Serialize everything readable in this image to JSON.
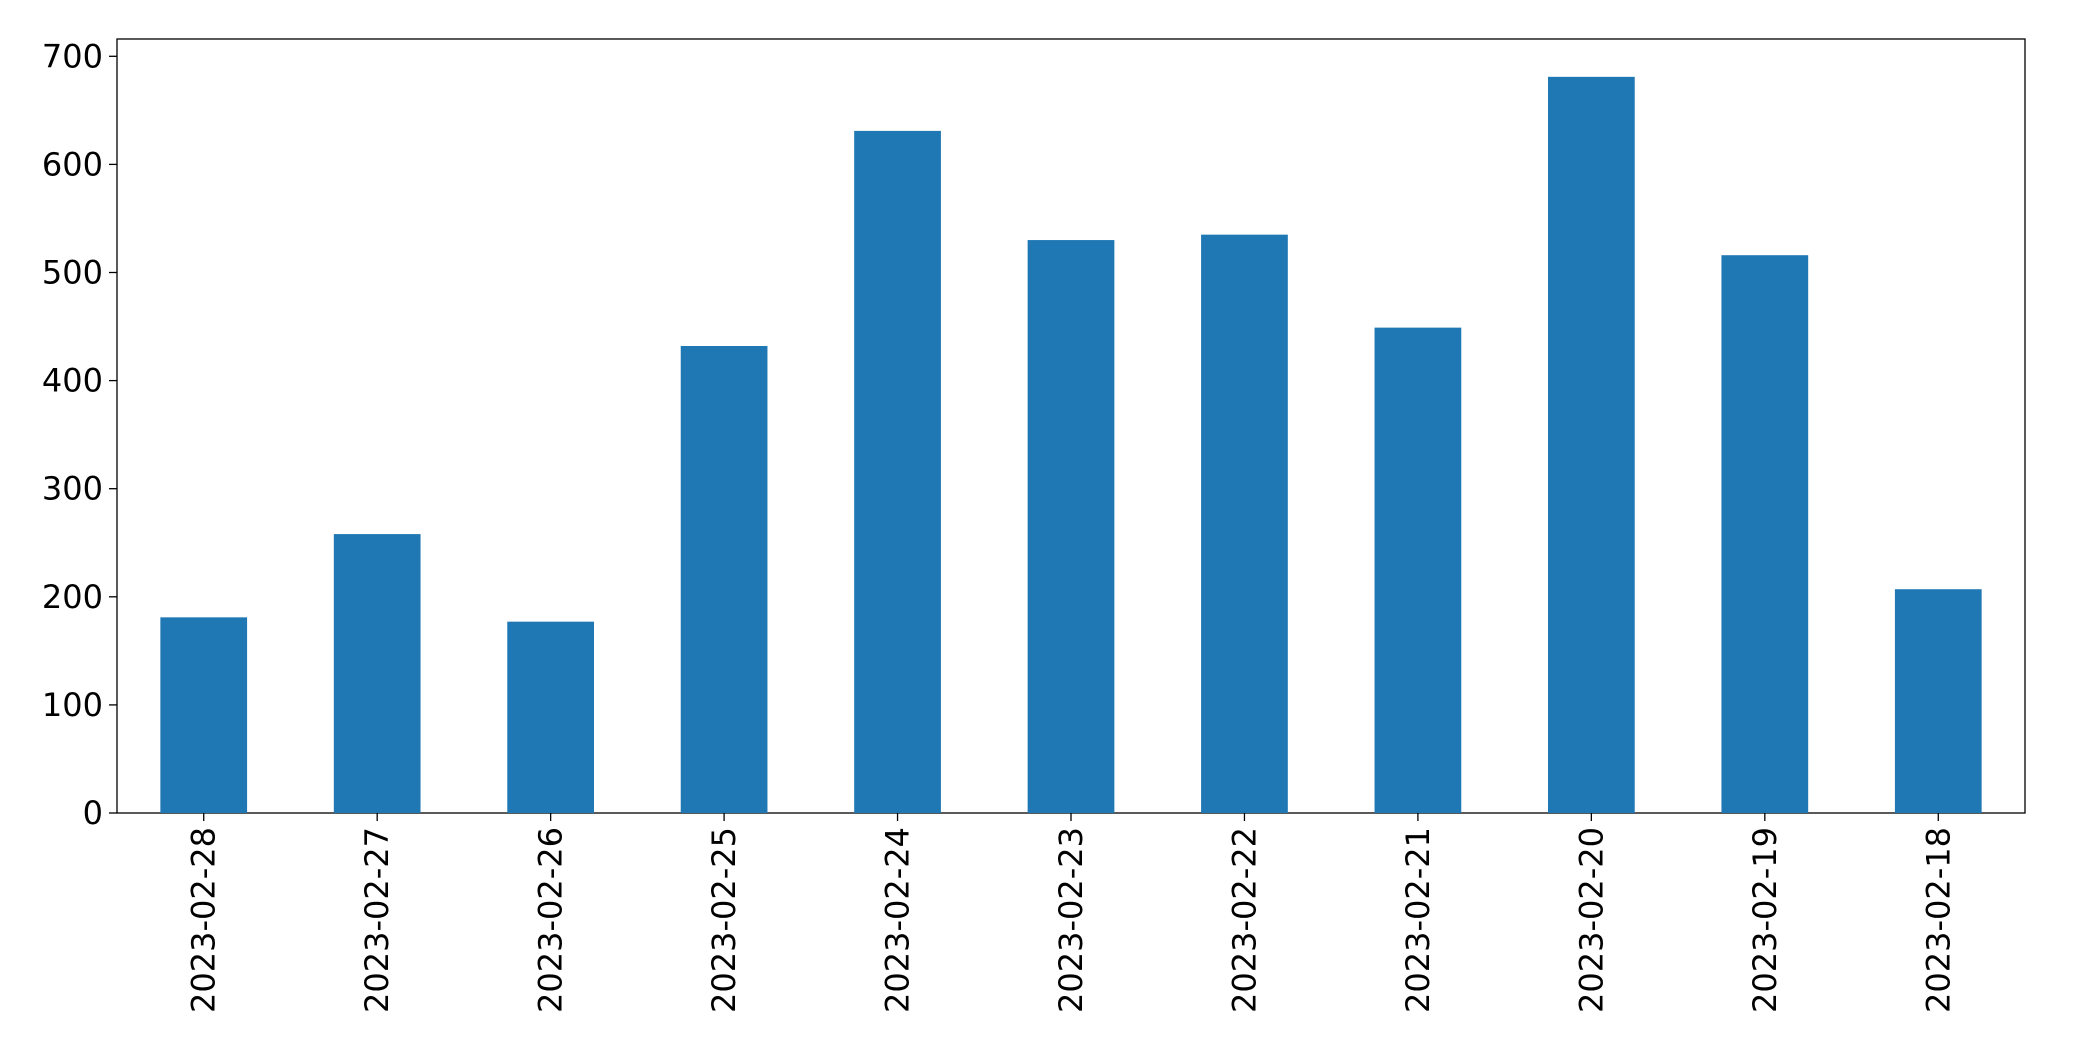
{
  "chart_data": {
    "type": "bar",
    "categories": [
      "2023-02-28",
      "2023-02-27",
      "2023-02-26",
      "2023-02-25",
      "2023-02-24",
      "2023-02-23",
      "2023-02-22",
      "2023-02-21",
      "2023-02-20",
      "2023-02-19",
      "2023-02-18"
    ],
    "values": [
      181,
      258,
      177,
      432,
      631,
      530,
      535,
      449,
      681,
      516,
      207
    ],
    "color": "#1f77b4",
    "ylim": [
      0,
      716
    ],
    "yticks": [
      0,
      100,
      200,
      300,
      400,
      500,
      600,
      700
    ],
    "grid": false
  }
}
